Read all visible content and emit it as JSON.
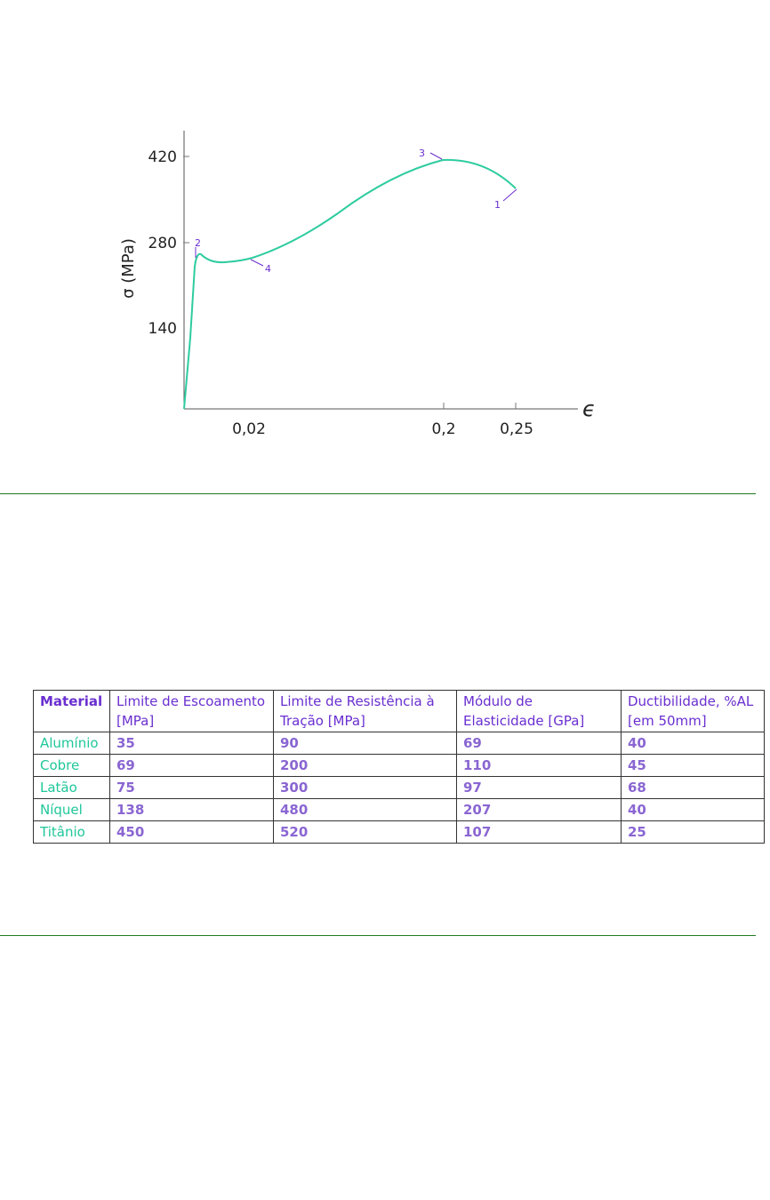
{
  "chart": {
    "y_label": "σ (MPa)",
    "x_label": "ϵ",
    "yticks": [
      420,
      280,
      140
    ],
    "xticks": [
      "0,02",
      "0,2",
      "0,25"
    ],
    "annotations": [
      1,
      2,
      3,
      4
    ]
  },
  "table": {
    "header": [
      "Material",
      "Limite de Escoamento [MPa]",
      "Limite de Resistência à Tração [MPa]",
      "Módulo de Elasticidade [GPa]",
      "Ductibilidade, %AL [em 50mm]"
    ],
    "rows": [
      [
        "Alumínio",
        35,
        90,
        69,
        40
      ],
      [
        "Cobre",
        69,
        200,
        110,
        45
      ],
      [
        "Latão",
        75,
        300,
        97,
        68
      ],
      [
        "Níquel",
        138,
        480,
        207,
        40
      ],
      [
        "Titânio",
        450,
        520,
        107,
        25
      ]
    ]
  }
}
